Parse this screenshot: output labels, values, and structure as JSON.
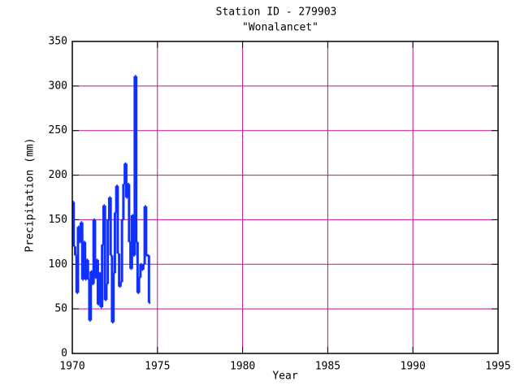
{
  "chart_data": {
    "type": "step",
    "title": "Station ID - 279903",
    "subtitle": "\"Wonalancet\"",
    "x_label": "Year",
    "y_label": "Precipitation (mm)",
    "x": [
      1970,
      1970.083,
      1970.167,
      1970.25,
      1970.333,
      1970.417,
      1970.5,
      1970.583,
      1970.667,
      1970.75,
      1970.833,
      1970.917,
      1971,
      1971.083,
      1971.167,
      1971.25,
      1971.333,
      1971.417,
      1971.5,
      1971.583,
      1971.667,
      1971.75,
      1971.833,
      1971.917,
      1972,
      1972.083,
      1972.167,
      1972.25,
      1972.333,
      1972.417,
      1972.5,
      1972.583,
      1972.667,
      1972.75,
      1972.833,
      1972.917,
      1973,
      1973.083,
      1973.167,
      1973.25,
      1973.333,
      1973.417,
      1973.5,
      1973.583,
      1973.667,
      1973.75,
      1973.833,
      1973.917,
      1974,
      1974.083,
      1974.167,
      1974.25,
      1974.333,
      1974.417,
      1974.5
    ],
    "values": [
      170,
      120,
      110,
      68,
      142,
      125,
      147,
      83,
      125,
      83,
      105,
      83,
      37,
      92,
      78,
      150,
      85,
      105,
      55,
      90,
      52,
      122,
      166,
      60,
      78,
      150,
      175,
      110,
      35,
      90,
      158,
      188,
      112,
      75,
      80,
      150,
      190,
      213,
      175,
      190,
      125,
      95,
      155,
      110,
      311,
      125,
      68,
      85,
      100,
      94,
      100,
      165,
      110,
      110,
      57
    ],
    "color": "#1030ff",
    "grid_color": "#c0108f",
    "xlim": [
      1970,
      1995
    ],
    "xticks": [
      1970,
      1975,
      1980,
      1985,
      1990,
      1995
    ],
    "ylim": [
      0,
      350
    ],
    "yticks": [
      0,
      50,
      100,
      150,
      200,
      250,
      300,
      350
    ],
    "grid": true
  }
}
